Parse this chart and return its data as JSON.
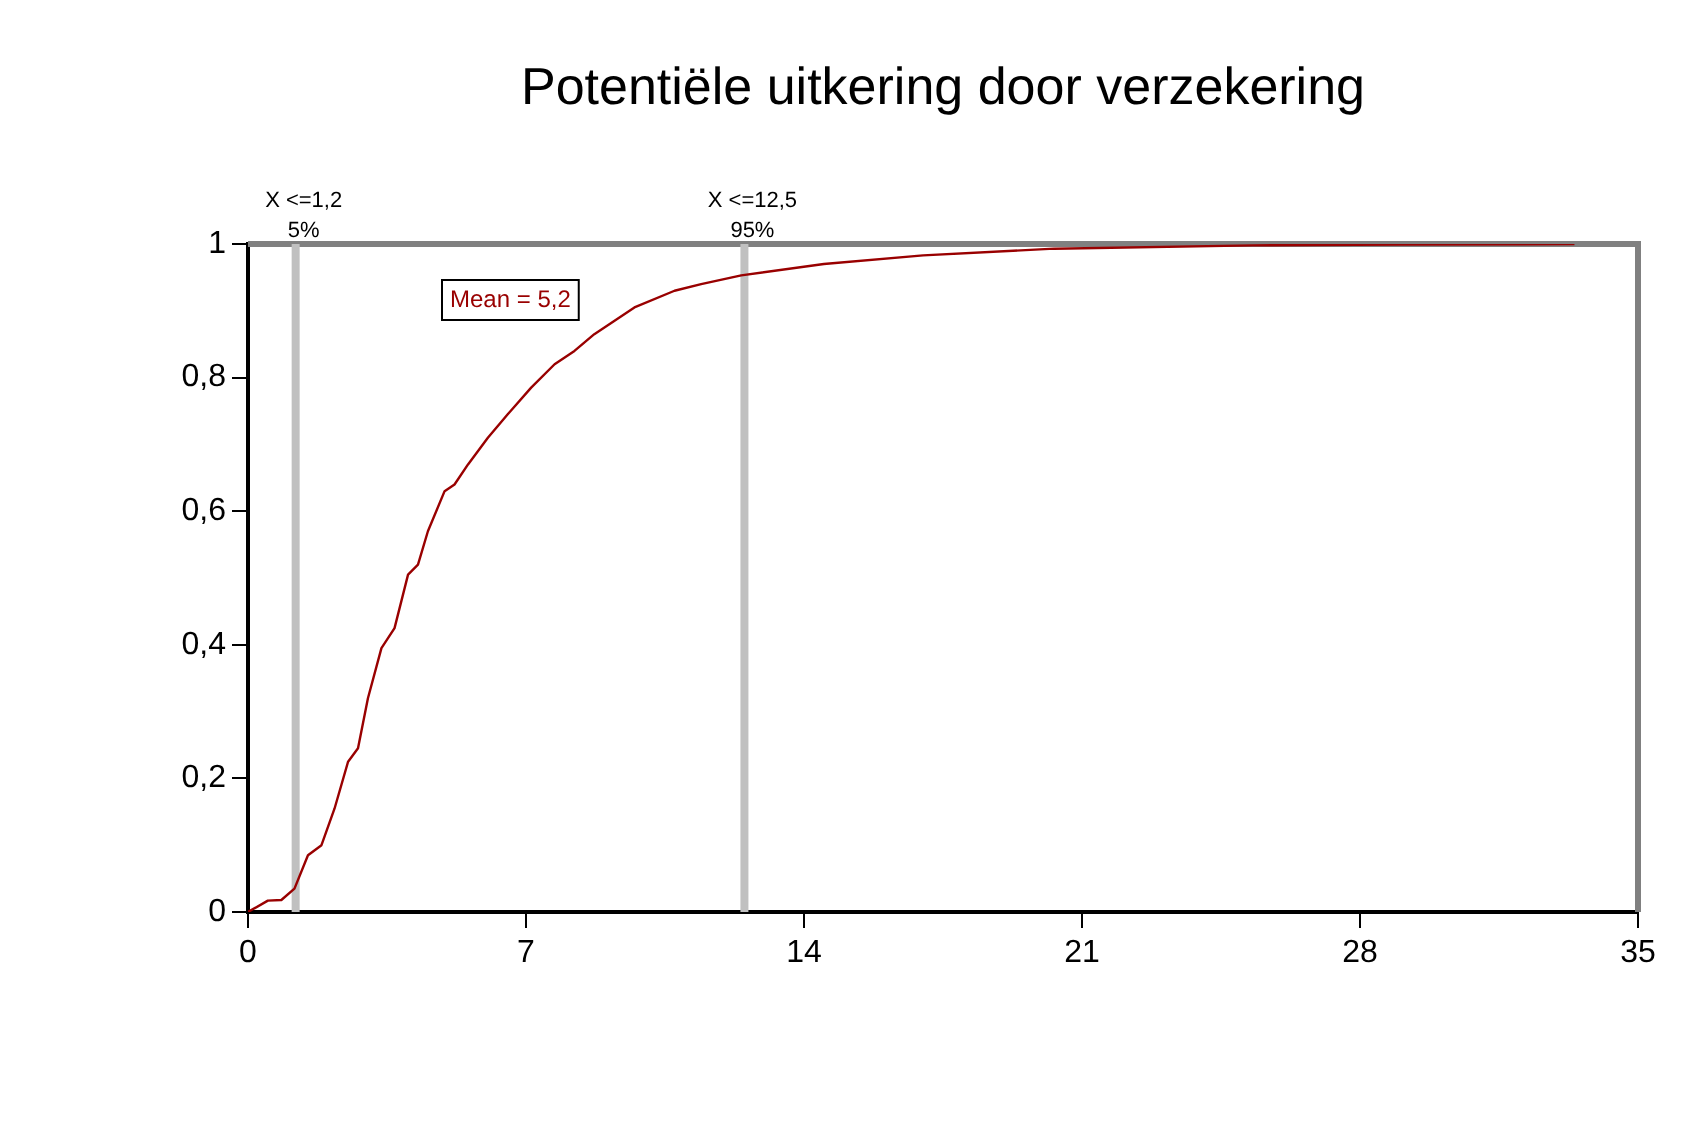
{
  "chart_data": {
    "type": "line",
    "title": "Potentiële uitkering door verzekering",
    "series": [
      {
        "color": "#990000",
        "x": [
          0,
          0.5,
          0.84,
          1.17,
          1.51,
          1.85,
          2.18,
          2.52,
          2.77,
          3.02,
          3.36,
          3.69,
          4.03,
          4.28,
          4.53,
          4.95,
          5.2,
          5.54,
          6.04,
          6.54,
          7.13,
          7.72,
          8.22,
          8.72,
          9.23,
          9.73,
          10.74,
          11.41,
          12.42,
          14.5,
          17,
          20.3,
          25.3,
          29,
          33.4
        ],
        "values": [
          0,
          0.017,
          0.018,
          0.035,
          0.085,
          0.1,
          0.155,
          0.225,
          0.245,
          0.32,
          0.395,
          0.425,
          0.505,
          0.52,
          0.57,
          0.63,
          0.64,
          0.67,
          0.71,
          0.745,
          0.785,
          0.82,
          0.84,
          0.865,
          0.885,
          0.905,
          0.93,
          0.94,
          0.953,
          0.97,
          0.983,
          0.993,
          0.998,
          0.999,
          1
        ]
      }
    ],
    "xlim": [
      0,
      35
    ],
    "xticks": [
      0,
      7,
      14,
      21,
      28,
      35
    ],
    "ylim": [
      0,
      1
    ],
    "yticks": [
      0,
      {
        "value": 0.2,
        "label": "0,2"
      },
      {
        "value": 0.4,
        "label": "0,4"
      },
      {
        "value": 0.6,
        "label": "0,6"
      },
      {
        "value": 0.8,
        "label": "0,8"
      },
      1
    ],
    "ref_lines": [
      {
        "axis": "x",
        "value": 1.2,
        "label": "X <=1,2",
        "color": "#c0c0c0"
      },
      {
        "axis": "x",
        "value": 12.5,
        "label": "X <=12,5",
        "color": "#c0c0c0"
      }
    ],
    "annotations": [
      "Mean = 5,2",
      {
        "text": "5%",
        "x": 1.2,
        "y": 1
      },
      {
        "text": "95%",
        "x": 12.5,
        "y": 1
      }
    ],
    "grid": false,
    "legend": false,
    "marker": "none",
    "line_style": "solid"
  }
}
